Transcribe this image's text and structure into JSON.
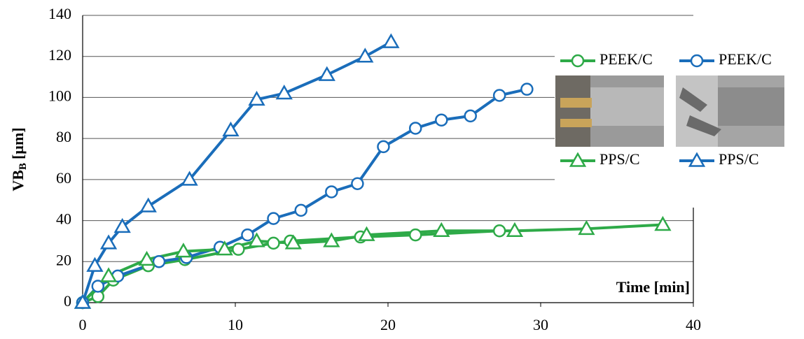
{
  "chart_data": {
    "type": "line",
    "y_label": "VB",
    "y_label_sub": "B",
    "y_label_unit": "[µm]",
    "x_label": "Time [min]",
    "xlim": [
      0,
      40
    ],
    "xticks": [
      0,
      10,
      20,
      30,
      40
    ],
    "ylim": [
      0,
      140
    ],
    "yticks": [
      0,
      20,
      40,
      60,
      80,
      100,
      120,
      140
    ],
    "grid": true,
    "series": [
      {
        "name": "PEEK/C",
        "color": "#2eaa48",
        "marker": "circle",
        "x": [
          0,
          1,
          2,
          4.3,
          6.7,
          10.2,
          12.5,
          13.6,
          18.2,
          21.8,
          27.3
        ],
        "values": [
          0,
          3,
          11,
          18,
          21,
          26,
          29,
          30,
          32,
          33,
          35
        ]
      },
      {
        "name": "PEEK/C",
        "color": "#1a6dba",
        "marker": "circle",
        "x": [
          0,
          1,
          2.3,
          5,
          6.8,
          9,
          10.8,
          12.5,
          14.3,
          16.3,
          18,
          19.7,
          21.8,
          23.5,
          25.4,
          27.3,
          29.1
        ],
        "values": [
          0,
          8,
          13,
          20,
          22,
          27,
          33,
          41,
          45,
          54,
          58,
          76,
          85,
          89,
          91,
          101,
          104
        ]
      },
      {
        "name": "PPS/C",
        "color": "#2eaa48",
        "marker": "triangle",
        "x": [
          0,
          1.7,
          4.2,
          6.6,
          9.3,
          11.4,
          13.8,
          16.3,
          18.6,
          23.5,
          28.3,
          33,
          38
        ],
        "values": [
          0,
          13,
          21,
          25,
          26,
          30,
          29,
          30,
          33,
          35,
          35,
          36,
          38
        ]
      },
      {
        "name": "PPS/C",
        "color": "#1a6dba",
        "marker": "triangle",
        "x": [
          0,
          0.8,
          1.7,
          2.6,
          4.3,
          7,
          9.7,
          11.4,
          13.2,
          16,
          18.5,
          20.2
        ],
        "values": [
          0,
          18,
          29,
          37,
          47,
          60,
          84,
          99,
          102,
          111,
          120,
          127
        ]
      }
    ]
  }
}
